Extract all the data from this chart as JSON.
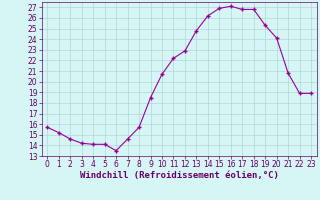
{
  "x": [
    0,
    1,
    2,
    3,
    4,
    5,
    6,
    7,
    8,
    9,
    10,
    11,
    12,
    13,
    14,
    15,
    16,
    17,
    18,
    19,
    20,
    21,
    22,
    23
  ],
  "y": [
    15.7,
    15.2,
    14.6,
    14.2,
    14.1,
    14.1,
    13.5,
    14.6,
    15.7,
    18.5,
    20.7,
    22.2,
    22.9,
    24.8,
    26.2,
    26.9,
    27.1,
    26.8,
    26.8,
    25.3,
    24.1,
    20.8,
    18.9,
    18.9
  ],
  "line_color": "#990099",
  "marker": "+",
  "marker_size": 3,
  "xlim": [
    -0.5,
    23.5
  ],
  "ylim": [
    13,
    27.5
  ],
  "yticks": [
    13,
    14,
    15,
    16,
    17,
    18,
    19,
    20,
    21,
    22,
    23,
    24,
    25,
    26,
    27
  ],
  "xticks": [
    0,
    1,
    2,
    3,
    4,
    5,
    6,
    7,
    8,
    9,
    10,
    11,
    12,
    13,
    14,
    15,
    16,
    17,
    18,
    19,
    20,
    21,
    22,
    23
  ],
  "xlabel": "Windchill (Refroidissement éolien,°C)",
  "background_color": "#d6f5f5",
  "grid_color": "#b0d8d8",
  "label_color": "#660066",
  "tick_color": "#660066",
  "tick_fontsize": 5.5,
  "xlabel_fontsize": 6.5
}
